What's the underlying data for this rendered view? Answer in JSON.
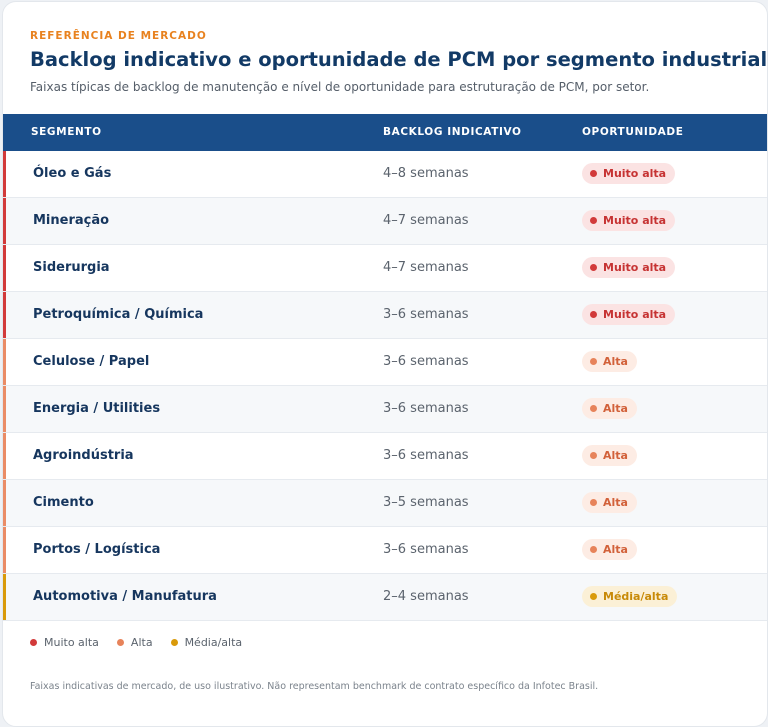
{
  "header": {
    "eyebrow": "REFERÊNCIA DE MERCADO",
    "title": "Backlog indicativo e oportunidade de PCM por segmento industrial",
    "subtitle": "Faixas típicas de backlog de manutenção e nível de oportunidade para estruturação de PCM, por setor."
  },
  "table": {
    "columns": [
      "SEGMENTO",
      "BACKLOG INDICATIVO",
      "OPORTUNIDADE"
    ],
    "rows": [
      {
        "segment": "Óleo e Gás",
        "backlog": "4–8 semanas",
        "opportunity": "Muito alta",
        "level": "muito-alta"
      },
      {
        "segment": "Mineração",
        "backlog": "4–7 semanas",
        "opportunity": "Muito alta",
        "level": "muito-alta"
      },
      {
        "segment": "Siderurgia",
        "backlog": "4–7 semanas",
        "opportunity": "Muito alta",
        "level": "muito-alta"
      },
      {
        "segment": "Petroquímica / Química",
        "backlog": "3–6 semanas",
        "opportunity": "Muito alta",
        "level": "muito-alta"
      },
      {
        "segment": "Celulose / Papel",
        "backlog": "3–6 semanas",
        "opportunity": "Alta",
        "level": "alta"
      },
      {
        "segment": "Energia / Utilities",
        "backlog": "3–6 semanas",
        "opportunity": "Alta",
        "level": "alta"
      },
      {
        "segment": "Agroindústria",
        "backlog": "3–6 semanas",
        "opportunity": "Alta",
        "level": "alta"
      },
      {
        "segment": "Cimento",
        "backlog": "3–5 semanas",
        "opportunity": "Alta",
        "level": "alta"
      },
      {
        "segment": "Portos / Logística",
        "backlog": "3–6 semanas",
        "opportunity": "Alta",
        "level": "alta"
      },
      {
        "segment": "Automotiva / Manufatura",
        "backlog": "2–4 semanas",
        "opportunity": "Média/alta",
        "level": "media-alta"
      }
    ]
  },
  "levels": {
    "muito-alta": {
      "dot": "#d23a3a",
      "text": "#c63333",
      "bg": "#fbe3e3",
      "accent": "#d23a3a"
    },
    "alta": {
      "dot": "#e7835a",
      "text": "#d2613a",
      "bg": "#fdece4",
      "accent": "#ea8c66"
    },
    "media-alta": {
      "dot": "#d99a0a",
      "text": "#c88a08",
      "bg": "#fbf0d6",
      "accent": "#d99a0a"
    }
  },
  "legend": [
    {
      "label": "Muito alta",
      "level": "muito-alta"
    },
    {
      "label": "Alta",
      "level": "alta"
    },
    {
      "label": "Média/alta",
      "level": "media-alta"
    }
  ],
  "footnote": "Faixas indicativas de mercado, de uso ilustrativo. Não representam benchmark de contrato específico da Infotec Brasil."
}
